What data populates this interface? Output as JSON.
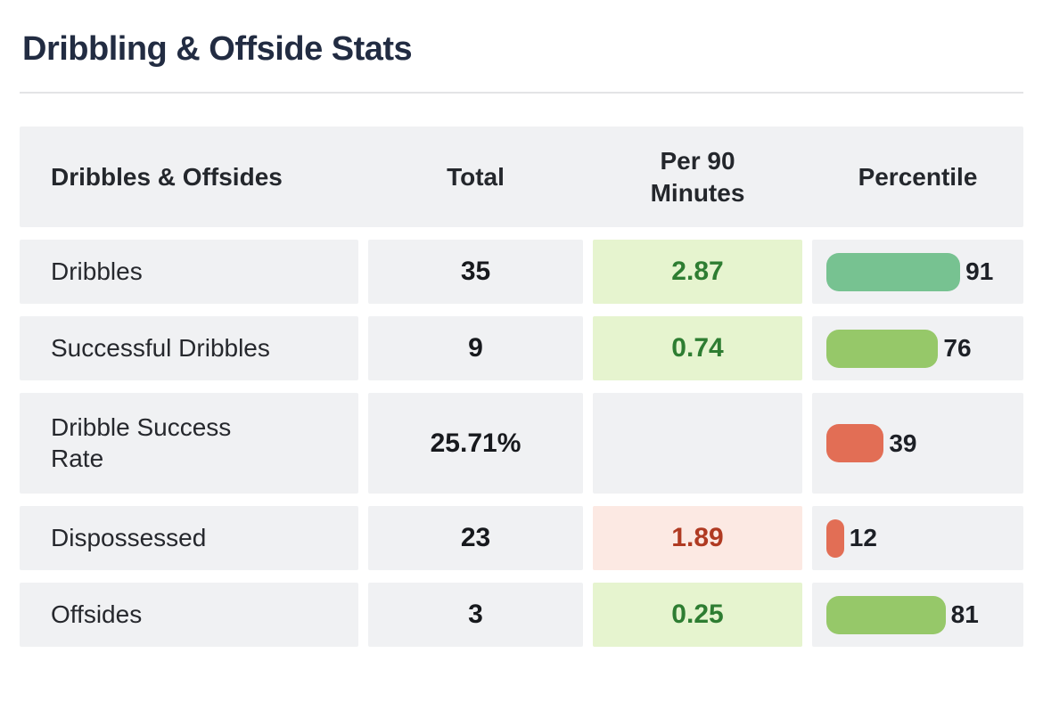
{
  "header": {
    "title": "Dribbling & Offside Stats"
  },
  "colors": {
    "title_text": "#222c42",
    "cell_background": "#f0f1f3",
    "per90_good_background": "#e6f4cf",
    "per90_good_text": "#2e7d32",
    "per90_bad_background": "#fce9e3",
    "per90_bad_text": "#b03a22",
    "bar_green": "#77c291",
    "bar_lime": "#96c869",
    "bar_red": "#e26e55",
    "divider": "#e3e4e6"
  },
  "chart_data": {
    "type": "table",
    "title": "Dribbling & Offside Stats",
    "columns": [
      "Dribbles & Offsides",
      "Total",
      "Per 90\nMinutes",
      "Percentile"
    ],
    "percentile_scale": [
      0,
      100
    ],
    "rows": [
      {
        "label": "Dribbles",
        "total": "35",
        "per90": "2.87",
        "per90_trend": "good",
        "percentile": 91,
        "bar_color": "#77c291"
      },
      {
        "label": "Successful Dribbles",
        "total": "9",
        "per90": "0.74",
        "per90_trend": "good",
        "percentile": 76,
        "bar_color": "#96c869"
      },
      {
        "label": "Dribble Success\nRate",
        "total": "25.71%",
        "per90": "",
        "per90_trend": "none",
        "percentile": 39,
        "bar_color": "#e26e55"
      },
      {
        "label": "Dispossessed",
        "total": "23",
        "per90": "1.89",
        "per90_trend": "bad",
        "percentile": 12,
        "bar_color": "#e26e55"
      },
      {
        "label": "Offsides",
        "total": "3",
        "per90": "0.25",
        "per90_trend": "good",
        "percentile": 81,
        "bar_color": "#96c869"
      }
    ]
  }
}
